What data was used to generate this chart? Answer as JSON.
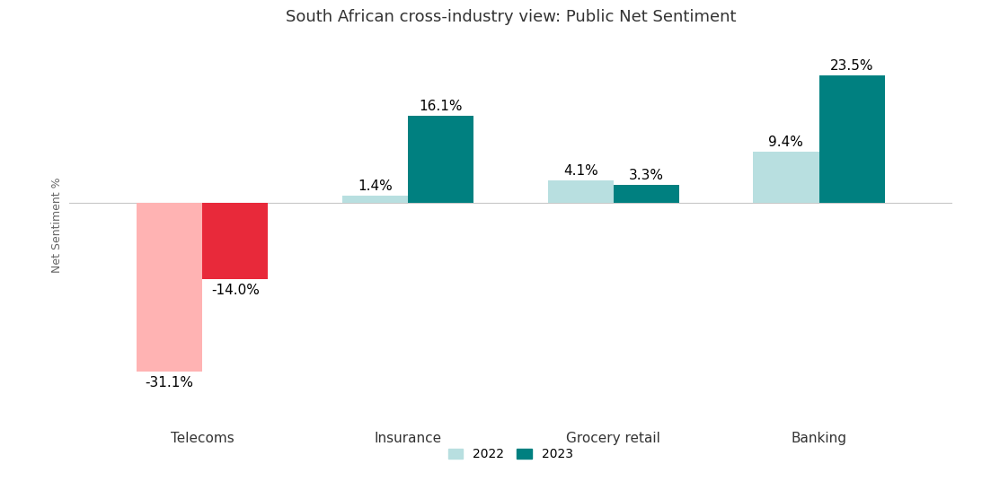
{
  "title": "South African cross-industry view: Public Net Sentiment",
  "categories": [
    "Telecoms",
    "Insurance",
    "Grocery retail",
    "Banking"
  ],
  "values_2022": [
    -31.1,
    1.4,
    4.1,
    9.4
  ],
  "values_2023": [
    -14.0,
    16.1,
    3.3,
    23.5
  ],
  "colors_2022": [
    "#FFB3B3",
    "#B8DFE0",
    "#B8DFE0",
    "#B8DFE0"
  ],
  "colors_2023": [
    "#E8293A",
    "#008080",
    "#008080",
    "#008080"
  ],
  "ylabel": "Net Sentiment %",
  "legend_2022": "2022",
  "legend_2023": "2023",
  "bar_width": 0.32,
  "ylim": [
    -38,
    30
  ],
  "background_color": "#ffffff",
  "title_fontsize": 13,
  "label_fontsize": 11,
  "axis_label_fontsize": 9,
  "tick_label_fontsize": 11
}
